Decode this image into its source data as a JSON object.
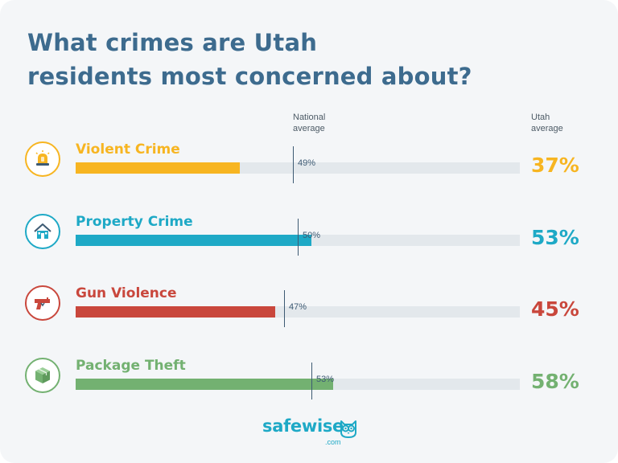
{
  "title_line1": "What crimes are Utah",
  "title_line2": "residents most concerned about?",
  "headers": {
    "national": [
      "National",
      "average"
    ],
    "utah": [
      "Utah",
      "average"
    ]
  },
  "chart_data": {
    "type": "bar",
    "orientation": "horizontal",
    "title": "What crimes are Utah residents most concerned about?",
    "categories": [
      "Violent Crime",
      "Property Crime",
      "Gun Violence",
      "Package Theft"
    ],
    "series": [
      {
        "name": "Utah average",
        "values": [
          37,
          53,
          45,
          58
        ]
      },
      {
        "name": "National average",
        "values": [
          49,
          50,
          47,
          53
        ]
      }
    ],
    "value_labels_utah": [
      "37%",
      "53%",
      "45%",
      "58%"
    ],
    "value_labels_national": [
      "49%",
      "50%",
      "47%",
      "53%"
    ],
    "xlim": [
      0,
      100
    ],
    "grid": false,
    "legend": "none"
  },
  "rows": [
    {
      "label": "Violent Crime",
      "icon": "siren-icon",
      "color": "#f7b521"
    },
    {
      "label": "Property Crime",
      "icon": "house-icon",
      "color": "#1ea9c6"
    },
    {
      "label": "Gun Violence",
      "icon": "gun-icon",
      "color": "#c9473c"
    },
    {
      "label": "Package Theft",
      "icon": "package-icon",
      "color": "#73b171"
    }
  ],
  "brand": {
    "name": "safewise",
    "suffix": ".com",
    "color": "#1ea9c6"
  },
  "colors": {
    "title": "#3d6b8e",
    "track": "#e3e8ec",
    "marker": "#3d5a73"
  }
}
